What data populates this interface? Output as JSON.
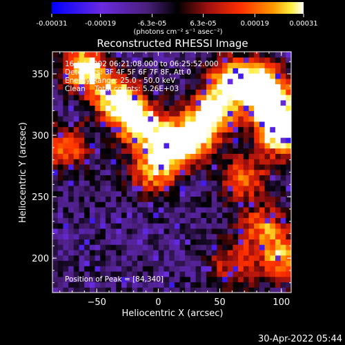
{
  "chart_data": {
    "type": "heatmap",
    "title": "Reconstructed RHESSI Image",
    "xlabel": "Heliocentric X (arcsec)",
    "ylabel": "Heliocentric Y (arcsec)",
    "xlim": [
      -86,
      108
    ],
    "ylim": [
      172,
      368
    ],
    "xticks": [
      -50,
      0,
      50,
      100
    ],
    "yticks": [
      200,
      250,
      300,
      350
    ],
    "xtick_labels": [
      "−50",
      "0",
      "50",
      "100"
    ],
    "ytick_labels": [
      "200",
      "250",
      "300",
      "350"
    ],
    "grid": false,
    "colorbar": {
      "colormap": "blue-purple-black-red-orange-yellow-white",
      "range": [
        -0.00031,
        0.00031
      ],
      "ticks": [
        -0.00031,
        -0.00019,
        -6.3e-05,
        6.3e-05,
        0.00019,
        0.00031
      ],
      "tick_labels": [
        "-0.00031",
        "-0.00019",
        "-6.3e-05",
        "6.3e-05",
        "0.00019",
        "0.00031"
      ],
      "units_label": "(photons cm⁻² s⁻¹ asec⁻²)"
    },
    "annotations": [
      "16-Jul-2002 06:21:08.000 to 06:25:52.000",
      "Detectors: 3F 4F 5F 6F 7F 8F, Att 0",
      "Energy Range: 25.0 - 50.0 keV",
      "Clean    Total counts: 5.26E+03",
      "Position of Peak = [84,340]"
    ],
    "peak": {
      "x": 84,
      "y": 340
    },
    "bright_regions": [
      {
        "x": -60,
        "y": 355,
        "level": 0.9
      },
      {
        "x": -35,
        "y": 330,
        "level": 0.85
      },
      {
        "x": -15,
        "y": 310,
        "level": 0.95
      },
      {
        "x": 10,
        "y": 290,
        "level": 0.85
      },
      {
        "x": 30,
        "y": 300,
        "level": 0.75
      },
      {
        "x": 45,
        "y": 320,
        "level": 0.8
      },
      {
        "x": 60,
        "y": 345,
        "level": 0.85
      },
      {
        "x": 84,
        "y": 340,
        "level": 1.0
      },
      {
        "x": 95,
        "y": 320,
        "level": 0.9
      },
      {
        "x": 100,
        "y": 300,
        "level": 0.8
      },
      {
        "x": -5,
        "y": 270,
        "level": 0.6
      },
      {
        "x": 70,
        "y": 265,
        "level": 0.55
      },
      {
        "x": 85,
        "y": 225,
        "level": 0.55
      },
      {
        "x": 100,
        "y": 200,
        "level": 0.6
      },
      {
        "x": 60,
        "y": 195,
        "level": 0.45
      },
      {
        "x": -75,
        "y": 290,
        "level": 0.55
      }
    ]
  },
  "footer": {
    "timestamp": "30-Apr-2022 05:44"
  }
}
